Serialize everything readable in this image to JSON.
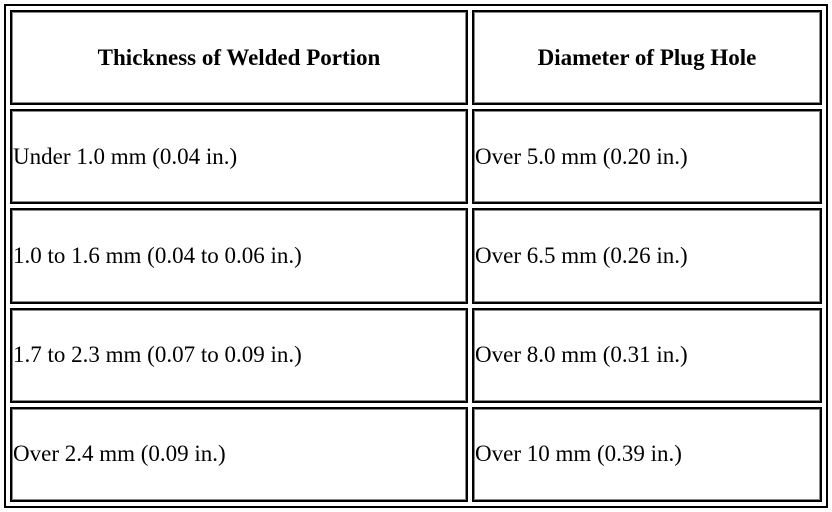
{
  "table": {
    "header": [
      "Thickness of Welded Portion",
      "Diameter of Plug Hole"
    ],
    "rows": [
      [
        "Under 1.0 mm (0.04 in.)",
        "Over 5.0 mm (0.20 in.)"
      ],
      [
        "1.0 to 1.6 mm (0.04 to 0.06 in.)",
        "Over 6.5 mm (0.26 in.)"
      ],
      [
        "1.7 to 2.3 mm (0.07 to 0.09 in.)",
        "Over 8.0 mm (0.31 in.)"
      ],
      [
        "Over 2.4 mm (0.09 in.)",
        "Over 10 mm (0.39 in.)"
      ]
    ]
  }
}
